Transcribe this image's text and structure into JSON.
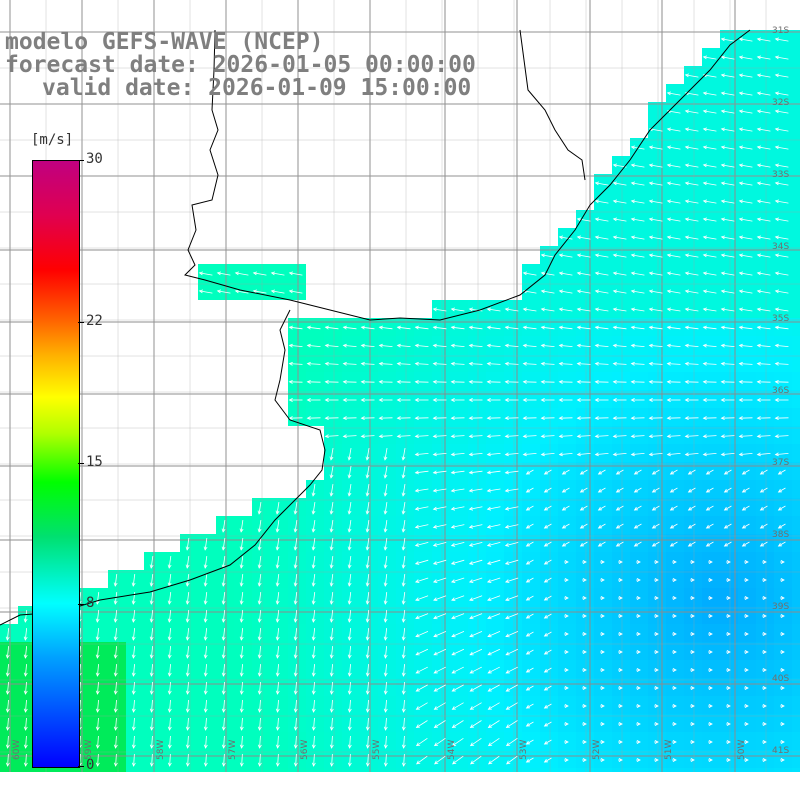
{
  "header": {
    "line1": "modelo GEFS-WAVE (NCEP)",
    "line2": "forecast date: 2026-01-05 00:00:00",
    "line3": "valid date: 2026-01-09 15:00:00"
  },
  "colorbar": {
    "unit": "[m/s]",
    "ticks": [
      {
        "label": "30",
        "value": 30
      },
      {
        "label": "22",
        "value": 22
      },
      {
        "label": "15",
        "value": 15
      },
      {
        "label": "8",
        "value": 8
      },
      {
        "label": "0",
        "value": 0
      }
    ],
    "min": 0,
    "max": 30
  },
  "grid": {
    "lat_labels": [
      "31S",
      "32S",
      "33S",
      "34S",
      "35S",
      "36S",
      "37S",
      "38S",
      "39S",
      "40S",
      "41S"
    ],
    "lon_labels": [
      "60W",
      "59W",
      "58W",
      "57W",
      "56W",
      "55W",
      "54W",
      "53W",
      "52W",
      "51W",
      "50W"
    ]
  },
  "colors": {
    "land": "#ffffff",
    "coast": "#000000",
    "gridline": "#8c8c8c",
    "arrow": "#ffffff",
    "header_text": "#7f7f7f"
  }
}
